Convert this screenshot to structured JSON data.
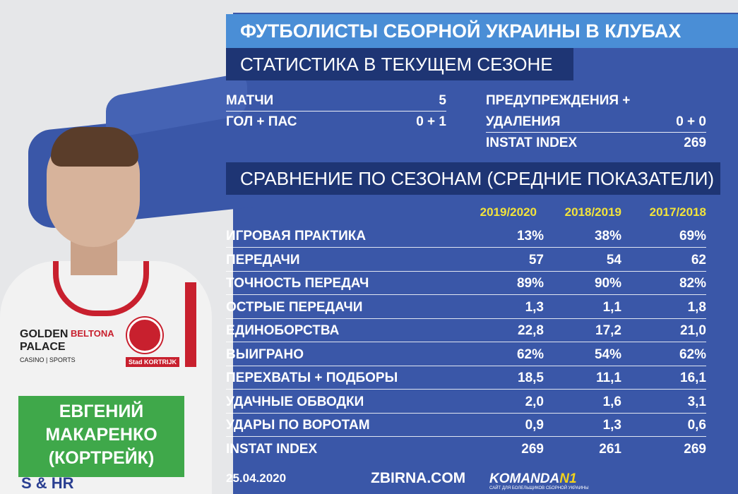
{
  "title": "ФУТБОЛИСТЫ СБОРНОЙ УКРАИНЫ В КЛУБАХ",
  "current_section": "СТАТИСТИКА В ТЕКУЩЕМ СЕЗОНЕ",
  "current": {
    "matches": {
      "label": "МАТЧИ",
      "value": "5"
    },
    "goals_assists": {
      "label": "ГОЛ + ПАС",
      "value": "0 + 1"
    },
    "cards_line1": "ПРЕДУПРЕЖДЕНИЯ +",
    "cards_line2": "УДАЛЕНИЯ",
    "cards_value": "0 + 0",
    "instat": {
      "label": "INSTAT INDEX",
      "value": "269"
    }
  },
  "comparison_section": "СРАВНЕНИЕ ПО СЕЗОНАМ (СРЕДНИЕ ПОКАЗАТЕЛИ)",
  "seasons": [
    "2019/2020",
    "2018/2019",
    "2017/2018"
  ],
  "rows": [
    {
      "label": "ИГРОВАЯ ПРАКТИКА",
      "values": [
        "13%",
        "38%",
        "69%"
      ]
    },
    {
      "label": "ПЕРЕДАЧИ",
      "values": [
        "57",
        "54",
        "62"
      ]
    },
    {
      "label": "ТОЧНОСТЬ ПЕРЕДАЧ",
      "values": [
        "89%",
        "90%",
        "82%"
      ]
    },
    {
      "label": "ОСТРЫЕ ПЕРЕДАЧИ",
      "values": [
        "1,3",
        "1,1",
        "1,8"
      ]
    },
    {
      "label": "ЕДИНОБОРСТВА",
      "values": [
        "22,8",
        "17,2",
        "21,0"
      ]
    },
    {
      "label": "ВЫИГРАНО",
      "values": [
        "62%",
        "54%",
        "62%"
      ]
    },
    {
      "label": "ПЕРЕХВАТЫ + ПОДБОРЫ",
      "values": [
        "18,5",
        "11,1",
        "16,1"
      ]
    },
    {
      "label": "УДАЧНЫЕ ОБВОДКИ",
      "values": [
        "2,0",
        "1,6",
        "3,1"
      ]
    },
    {
      "label": "УДАРЫ ПО ВОРОТАМ",
      "values": [
        "0,9",
        "1,3",
        "0,6"
      ]
    },
    {
      "label": "INSTAT INDEX",
      "values": [
        "269",
        "261",
        "269"
      ]
    }
  ],
  "player": {
    "first_name": "ЕВГЕНИЙ",
    "last_name": "МАКАРЕНКО",
    "club": "(КОРТРЕЙК)"
  },
  "shirt": {
    "sponsor_line1": "GOLDEN",
    "sponsor_line2": "PALACE",
    "sponsor_line3": "CASINO | SPORTS",
    "brand": "BELTONA",
    "club_tag": "Stad KORTRIJK",
    "bottom": "S & HR"
  },
  "footer": {
    "date": "25.04.2020",
    "site": "ZBIRNA.COM",
    "logo_text": "KOMANDA",
    "logo_num": "N1",
    "logo_sub": "САЙТ ДЛЯ БОЛЕЛЬЩИКОВ СБОРНОЙ УКРАИНЫ"
  },
  "colors": {
    "background": "#3a57a8",
    "title_bar": "#4a8ed6",
    "section_bar": "#1e3574",
    "season_text": "#f2e33b",
    "name_box": "#3fa84a"
  }
}
